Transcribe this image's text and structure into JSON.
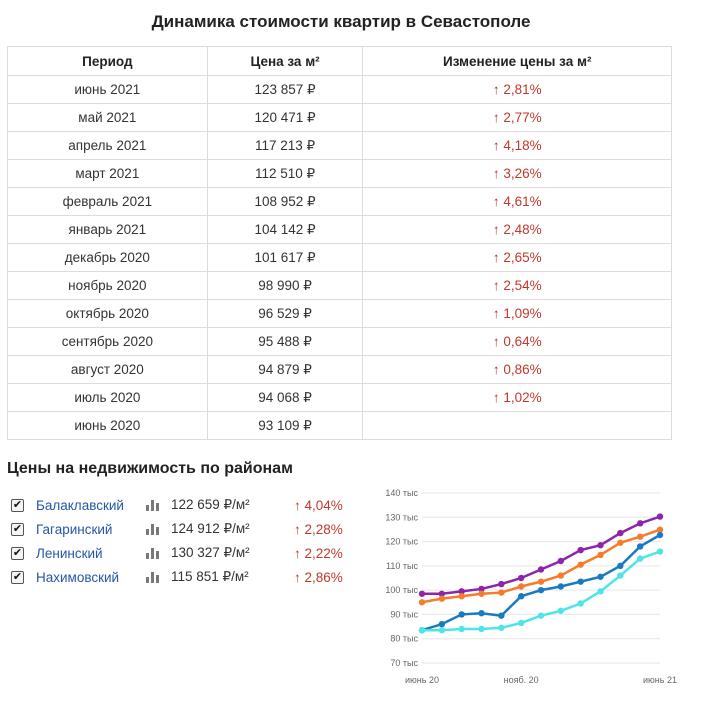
{
  "title": "Динамика стоимости квартир в Севастополе",
  "table": {
    "headers": [
      "Период",
      "Цена за м²",
      "Изменение цены за м²"
    ],
    "arrow": "↑",
    "rows": [
      {
        "period": "июнь 2021",
        "price": "123 857 ₽",
        "change": "2,81%"
      },
      {
        "period": "май 2021",
        "price": "120 471 ₽",
        "change": "2,77%"
      },
      {
        "period": "апрель 2021",
        "price": "117 213 ₽",
        "change": "4,18%"
      },
      {
        "period": "март 2021",
        "price": "112 510 ₽",
        "change": "3,26%"
      },
      {
        "period": "февраль 2021",
        "price": "108 952 ₽",
        "change": "4,61%"
      },
      {
        "period": "январь 2021",
        "price": "104 142 ₽",
        "change": "2,48%"
      },
      {
        "period": "декабрь 2020",
        "price": "101 617 ₽",
        "change": "2,65%"
      },
      {
        "period": "ноябрь 2020",
        "price": "98 990 ₽",
        "change": "2,54%"
      },
      {
        "period": "октябрь 2020",
        "price": "96 529 ₽",
        "change": "1,09%"
      },
      {
        "period": "сентябрь 2020",
        "price": "95 488 ₽",
        "change": "0,64%"
      },
      {
        "period": "август 2020",
        "price": "94 879 ₽",
        "change": "0,86%"
      },
      {
        "period": "июль 2020",
        "price": "94 068 ₽",
        "change": "1,02%"
      },
      {
        "period": "июнь 2020",
        "price": "93 109 ₽",
        "change": ""
      }
    ]
  },
  "districts_section": {
    "title": "Цены на недвижимость по районам",
    "checkmark": "✔",
    "items": [
      {
        "name": "Балаклавский",
        "price": "122 659 ₽/м²",
        "change": "↑ 4,04%",
        "checked": true
      },
      {
        "name": "Гагаринский",
        "price": "124 912 ₽/м²",
        "change": "↑ 2,28%",
        "checked": true
      },
      {
        "name": "Ленинский",
        "price": "130 327 ₽/м²",
        "change": "↑ 2,22%",
        "checked": true
      },
      {
        "name": "Нахимовский",
        "price": "115 851 ₽/м²",
        "change": "↑ 2,86%",
        "checked": true
      }
    ]
  },
  "chart_data": {
    "type": "line",
    "x": [
      "июнь 20",
      "июль 20",
      "авг. 20",
      "сент. 20",
      "окт. 20",
      "нояб. 20",
      "дек. 20",
      "янв. 21",
      "февр. 21",
      "март 21",
      "апр. 21",
      "май 21",
      "июнь 21"
    ],
    "x_tick_labels": [
      "июнь 20",
      "нояб. 20",
      "июнь 21"
    ],
    "y_ticks": [
      70,
      80,
      90,
      100,
      110,
      120,
      130,
      140
    ],
    "y_tick_suffix": " тыс",
    "ylim": [
      70,
      140
    ],
    "grid": true,
    "series": [
      {
        "color": "#8e24aa",
        "values": [
          98.5,
          98.5,
          99.5,
          100.5,
          102.5,
          105,
          108.5,
          112,
          116.5,
          118.5,
          123.5,
          127.5,
          130.3
        ]
      },
      {
        "color": "#f47c2c",
        "values": [
          95,
          96.5,
          97.5,
          98.5,
          99,
          101.5,
          103.5,
          106,
          110.5,
          114.5,
          119.5,
          122,
          124.9
        ]
      },
      {
        "color": "#1a7abf",
        "values": [
          83.5,
          86,
          90,
          90.5,
          89.5,
          97.5,
          100,
          101.5,
          103.5,
          105.5,
          110,
          118,
          122.7
        ]
      },
      {
        "color": "#4de5e8",
        "values": [
          83.5,
          83.5,
          84,
          84,
          84.5,
          86.5,
          89.5,
          91.5,
          94.5,
          99.5,
          106,
          113,
          115.9
        ]
      }
    ]
  }
}
